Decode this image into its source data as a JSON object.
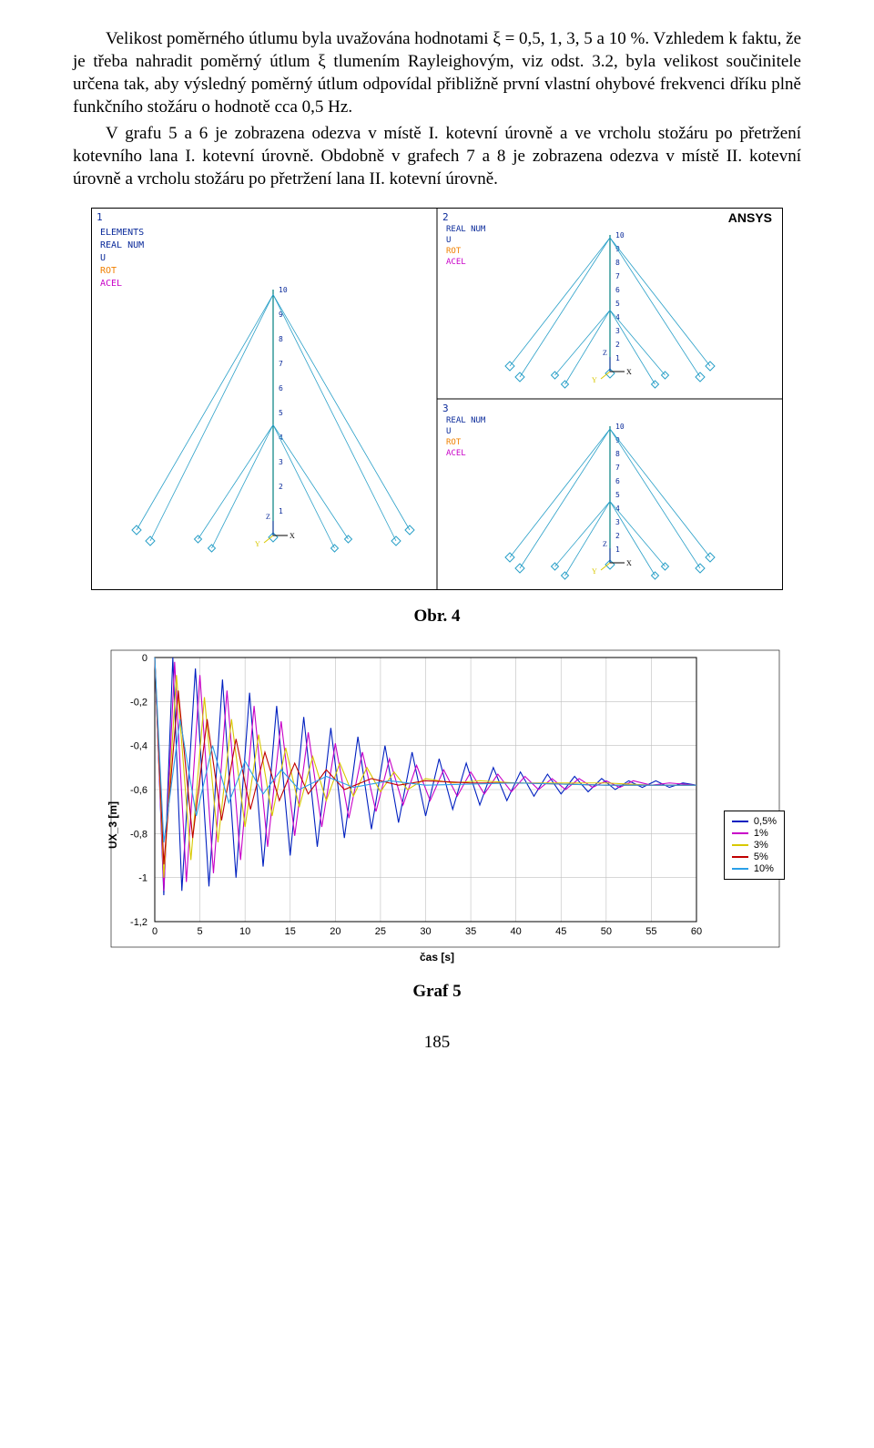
{
  "text": {
    "p1": "Velikost poměrného útlumu byla uvažována hodnotami ξ = 0,5, 1, 3, 5 a 10 %. Vzhledem k faktu, že je třeba nahradit poměrný útlum ξ tlumením Rayleighovým, viz odst. 3.2, byla velikost součinitele určena tak, aby výsledný poměrný útlum odpovídal přibližně první vlastní ohybové frekvenci dříku plně funkčního stožáru o hodnotě cca 0,5 Hz.",
    "p2": "V grafu 5 a 6 je zobrazena odezva v místě I. kotevní úrovně a ve vrcholu stožáru po přetržení kotevního lana I. kotevní úrovně. Obdobně v grafech 7 a 8 je zobrazena odezva v místě II. kotevní úrovně a vrcholu stožáru po přetržení lana II. kotevní úrovně.",
    "fig_caption": "Obr. 4",
    "chart_caption": "Graf 5",
    "page_number": "185"
  },
  "ansys": {
    "logo": "ANSYS",
    "row_labels": [
      "ELEMENTS",
      "REAL NUM",
      "U",
      "ROT",
      "ACEL"
    ],
    "label_colors": [
      "#0a2a9a",
      "#0a2a9a",
      "#0a2a9a",
      "#f08000",
      "#c800c8"
    ],
    "panel_numbers": [
      "1",
      "2",
      "3"
    ],
    "mast_scale_labels": [
      "1",
      "2",
      "3",
      "4",
      "5",
      "6",
      "7",
      "8",
      "9",
      "10"
    ],
    "axis_labels": [
      "X",
      "Y",
      "Z"
    ],
    "line_color": "#2aa0c8",
    "guy_color": "#2aa0c8",
    "symbol_color": "#2aa0c8",
    "mast_color": "#008080",
    "border_color": "#000000",
    "background": "#ffffff"
  },
  "chart": {
    "type": "line",
    "ylabel": "UX_3 [m]",
    "xlabel": "čas [s]",
    "xlim": [
      0,
      60
    ],
    "ylim": [
      -1.2,
      0
    ],
    "xtick_step": 5,
    "ytick_step": 0.2,
    "yticks_labels": [
      "0",
      "-0,2",
      "-0,4",
      "-0,6",
      "-0,8",
      "-1",
      "-1,2"
    ],
    "xticks_labels": [
      "0",
      "5",
      "10",
      "15",
      "20",
      "25",
      "30",
      "35",
      "40",
      "45",
      "50",
      "55",
      "60"
    ],
    "background_color": "#ffffff",
    "grid_color": "#bfbfbf",
    "border_color": "#000000",
    "series": [
      {
        "label": "0,5%",
        "color": "#0020c0",
        "data": [
          [
            0,
            0
          ],
          [
            1,
            -1.08
          ],
          [
            2,
            0
          ],
          [
            3,
            -1.06
          ],
          [
            4.5,
            -0.05
          ],
          [
            6,
            -1.04
          ],
          [
            7.5,
            -0.1
          ],
          [
            9,
            -1.0
          ],
          [
            10.5,
            -0.16
          ],
          [
            12,
            -0.95
          ],
          [
            13.5,
            -0.22
          ],
          [
            15,
            -0.9
          ],
          [
            16.5,
            -0.27
          ],
          [
            18,
            -0.86
          ],
          [
            19.5,
            -0.32
          ],
          [
            21,
            -0.82
          ],
          [
            22.5,
            -0.36
          ],
          [
            24,
            -0.78
          ],
          [
            25.5,
            -0.4
          ],
          [
            27,
            -0.75
          ],
          [
            28.5,
            -0.43
          ],
          [
            30,
            -0.72
          ],
          [
            31.5,
            -0.46
          ],
          [
            33,
            -0.69
          ],
          [
            34.5,
            -0.48
          ],
          [
            36,
            -0.67
          ],
          [
            37.5,
            -0.5
          ],
          [
            39,
            -0.65
          ],
          [
            40.5,
            -0.52
          ],
          [
            42,
            -0.63
          ],
          [
            43.5,
            -0.53
          ],
          [
            45,
            -0.62
          ],
          [
            46.5,
            -0.54
          ],
          [
            48,
            -0.61
          ],
          [
            49.5,
            -0.55
          ],
          [
            51,
            -0.6
          ],
          [
            52.5,
            -0.56
          ],
          [
            54,
            -0.59
          ],
          [
            55.5,
            -0.56
          ],
          [
            57,
            -0.59
          ],
          [
            58.5,
            -0.57
          ],
          [
            60,
            -0.58
          ]
        ]
      },
      {
        "label": "1%",
        "color": "#c800c8",
        "data": [
          [
            0,
            0
          ],
          [
            1,
            -1.06
          ],
          [
            2.2,
            -0.02
          ],
          [
            3.5,
            -1.02
          ],
          [
            5,
            -0.08
          ],
          [
            6.5,
            -0.98
          ],
          [
            8,
            -0.15
          ],
          [
            9.5,
            -0.92
          ],
          [
            11,
            -0.22
          ],
          [
            12.5,
            -0.86
          ],
          [
            14,
            -0.29
          ],
          [
            15.5,
            -0.81
          ],
          [
            17,
            -0.34
          ],
          [
            18.5,
            -0.77
          ],
          [
            20,
            -0.39
          ],
          [
            21.5,
            -0.73
          ],
          [
            23,
            -0.43
          ],
          [
            24.5,
            -0.7
          ],
          [
            26,
            -0.46
          ],
          [
            27.5,
            -0.67
          ],
          [
            29,
            -0.49
          ],
          [
            30.5,
            -0.65
          ],
          [
            32,
            -0.51
          ],
          [
            33.5,
            -0.63
          ],
          [
            35,
            -0.52
          ],
          [
            36.5,
            -0.62
          ],
          [
            38,
            -0.53
          ],
          [
            39.5,
            -0.61
          ],
          [
            41,
            -0.54
          ],
          [
            42.5,
            -0.6
          ],
          [
            44,
            -0.55
          ],
          [
            45.5,
            -0.6
          ],
          [
            47,
            -0.55
          ],
          [
            48.5,
            -0.59
          ],
          [
            50,
            -0.56
          ],
          [
            51.5,
            -0.59
          ],
          [
            53,
            -0.56
          ],
          [
            55,
            -0.58
          ],
          [
            57,
            -0.57
          ],
          [
            60,
            -0.58
          ]
        ]
      },
      {
        "label": "3%",
        "color": "#d8c800",
        "data": [
          [
            0,
            0
          ],
          [
            1,
            -1.0
          ],
          [
            2.4,
            -0.08
          ],
          [
            4,
            -0.92
          ],
          [
            5.5,
            -0.18
          ],
          [
            7,
            -0.84
          ],
          [
            8.5,
            -0.28
          ],
          [
            10,
            -0.77
          ],
          [
            11.5,
            -0.35
          ],
          [
            13,
            -0.72
          ],
          [
            14.5,
            -0.41
          ],
          [
            16,
            -0.68
          ],
          [
            17.5,
            -0.45
          ],
          [
            19,
            -0.65
          ],
          [
            20.5,
            -0.48
          ],
          [
            22,
            -0.63
          ],
          [
            23.5,
            -0.5
          ],
          [
            25,
            -0.61
          ],
          [
            26.5,
            -0.52
          ],
          [
            28,
            -0.6
          ],
          [
            30,
            -0.55
          ],
          [
            33,
            -0.57
          ],
          [
            36,
            -0.56
          ],
          [
            40,
            -0.57
          ],
          [
            45,
            -0.57
          ],
          [
            50,
            -0.57
          ],
          [
            55,
            -0.58
          ],
          [
            60,
            -0.58
          ]
        ]
      },
      {
        "label": "5%",
        "color": "#c00000",
        "data": [
          [
            0,
            0
          ],
          [
            1,
            -0.94
          ],
          [
            2.6,
            -0.15
          ],
          [
            4.2,
            -0.82
          ],
          [
            5.8,
            -0.28
          ],
          [
            7.4,
            -0.74
          ],
          [
            9,
            -0.37
          ],
          [
            10.6,
            -0.69
          ],
          [
            12.2,
            -0.43
          ],
          [
            13.8,
            -0.65
          ],
          [
            15.5,
            -0.48
          ],
          [
            17,
            -0.62
          ],
          [
            19,
            -0.51
          ],
          [
            21,
            -0.6
          ],
          [
            24,
            -0.55
          ],
          [
            27,
            -0.58
          ],
          [
            30,
            -0.56
          ],
          [
            35,
            -0.57
          ],
          [
            40,
            -0.57
          ],
          [
            50,
            -0.58
          ],
          [
            60,
            -0.58
          ]
        ]
      },
      {
        "label": "10%",
        "color": "#2aa0e8",
        "data": [
          [
            0,
            0
          ],
          [
            1,
            -0.84
          ],
          [
            2.8,
            -0.28
          ],
          [
            4.6,
            -0.72
          ],
          [
            6.4,
            -0.4
          ],
          [
            8.2,
            -0.66
          ],
          [
            10,
            -0.47
          ],
          [
            12,
            -0.62
          ],
          [
            14,
            -0.51
          ],
          [
            16,
            -0.6
          ],
          [
            19,
            -0.54
          ],
          [
            22,
            -0.59
          ],
          [
            26,
            -0.56
          ],
          [
            30,
            -0.58
          ],
          [
            40,
            -0.57
          ],
          [
            50,
            -0.58
          ],
          [
            60,
            -0.58
          ]
        ]
      }
    ]
  }
}
